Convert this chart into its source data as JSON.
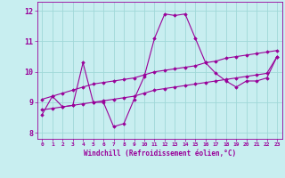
{
  "xlabel": "Windchill (Refroidissement éolien,°C)",
  "background_color": "#c8eef0",
  "grid_color": "#a0d8d8",
  "line_color": "#990099",
  "xlim": [
    -0.5,
    23.5
  ],
  "ylim": [
    7.8,
    12.3
  ],
  "xticks": [
    0,
    1,
    2,
    3,
    4,
    5,
    6,
    7,
    8,
    9,
    10,
    11,
    12,
    13,
    14,
    15,
    16,
    17,
    18,
    19,
    20,
    21,
    22,
    23
  ],
  "yticks": [
    8,
    9,
    10,
    11,
    12
  ],
  "line1_x": [
    0,
    1,
    2,
    3,
    4,
    5,
    6,
    7,
    8,
    9,
    10,
    11,
    12,
    13,
    14,
    15,
    16,
    17,
    18,
    19,
    20,
    21,
    22,
    23
  ],
  "line1_y": [
    8.6,
    9.2,
    8.85,
    8.9,
    10.3,
    9.0,
    9.0,
    8.2,
    8.3,
    9.1,
    9.85,
    11.1,
    11.9,
    11.85,
    11.9,
    11.1,
    10.3,
    9.95,
    9.7,
    9.5,
    9.7,
    9.7,
    9.8,
    10.5
  ],
  "line2_x": [
    0,
    1,
    2,
    3,
    4,
    5,
    6,
    7,
    8,
    9,
    10,
    11,
    12,
    13,
    14,
    15,
    16,
    17,
    18,
    19,
    20,
    21,
    22,
    23
  ],
  "line2_y": [
    9.1,
    9.2,
    9.3,
    9.4,
    9.5,
    9.6,
    9.65,
    9.7,
    9.75,
    9.8,
    9.9,
    10.0,
    10.05,
    10.1,
    10.15,
    10.2,
    10.3,
    10.35,
    10.45,
    10.5,
    10.55,
    10.6,
    10.65,
    10.7
  ],
  "line3_x": [
    0,
    1,
    2,
    3,
    4,
    5,
    6,
    7,
    8,
    9,
    10,
    11,
    12,
    13,
    14,
    15,
    16,
    17,
    18,
    19,
    20,
    21,
    22,
    23
  ],
  "line3_y": [
    8.75,
    8.8,
    8.85,
    8.9,
    8.95,
    9.0,
    9.05,
    9.1,
    9.15,
    9.2,
    9.3,
    9.4,
    9.45,
    9.5,
    9.55,
    9.6,
    9.65,
    9.7,
    9.75,
    9.8,
    9.85,
    9.9,
    9.95,
    10.5
  ]
}
